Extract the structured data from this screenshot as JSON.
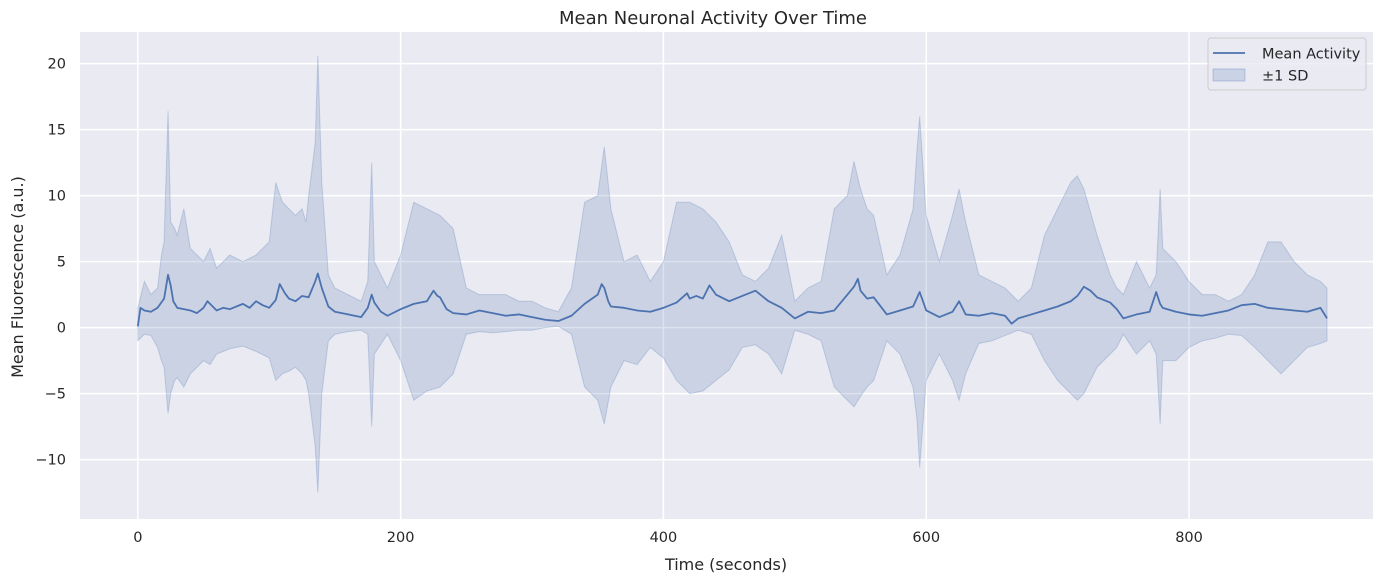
{
  "chart_data": {
    "type": "line",
    "title": "Mean Neuronal Activity Over Time",
    "xlabel": "Time (seconds)",
    "ylabel": "Mean Fluorescence (a.u.)",
    "xlim": [
      -44,
      940
    ],
    "ylim": [
      -14.5,
      22.4
    ],
    "x_ticks": [
      0,
      200,
      400,
      600,
      800
    ],
    "y_ticks": [
      -10,
      -5,
      0,
      5,
      10,
      15,
      20
    ],
    "x_tick_labels": [
      "0",
      "200",
      "400",
      "600",
      "800"
    ],
    "y_tick_labels": [
      "−10",
      "−5",
      "0",
      "5",
      "10",
      "15",
      "20"
    ],
    "grid": true,
    "legend_position": "top-right",
    "colors": {
      "background": "#eaeaf2",
      "grid": "#ffffff",
      "line": "#4c72b0",
      "band": "#4c72b0"
    },
    "series": [
      {
        "name": "Mean Activity",
        "kind": "line",
        "x": [
          0,
          2,
          5,
          10,
          15,
          20,
          23,
          25,
          27,
          30,
          35,
          40,
          45,
          50,
          53,
          55,
          60,
          65,
          70,
          75,
          80,
          85,
          90,
          95,
          100,
          105,
          108,
          112,
          115,
          120,
          125,
          130,
          135,
          137,
          140,
          145,
          150,
          160,
          170,
          175,
          178,
          180,
          185,
          190,
          200,
          210,
          220,
          225,
          228,
          230,
          235,
          240,
          250,
          260,
          270,
          280,
          290,
          300,
          310,
          320,
          330,
          340,
          350,
          353,
          355,
          358,
          360,
          370,
          380,
          390,
          400,
          410,
          418,
          420,
          425,
          430,
          435,
          440,
          450,
          460,
          470,
          480,
          490,
          500,
          510,
          520,
          530,
          540,
          545,
          548,
          550,
          555,
          560,
          570,
          580,
          590,
          595,
          600,
          610,
          620,
          625,
          630,
          640,
          650,
          660,
          665,
          670,
          680,
          690,
          700,
          710,
          715,
          720,
          725,
          730,
          740,
          745,
          750,
          760,
          770,
          775,
          778,
          780,
          790,
          800,
          810,
          820,
          830,
          840,
          850,
          860,
          870,
          880,
          890,
          900,
          905
        ],
        "y": [
          0.1,
          1.5,
          1.3,
          1.2,
          1.5,
          2.2,
          4.0,
          3.2,
          2.0,
          1.5,
          1.4,
          1.3,
          1.1,
          1.5,
          2.0,
          1.8,
          1.3,
          1.5,
          1.4,
          1.6,
          1.8,
          1.5,
          2.0,
          1.7,
          1.5,
          2.1,
          3.3,
          2.6,
          2.2,
          2.0,
          2.4,
          2.3,
          3.5,
          4.1,
          3.0,
          1.6,
          1.2,
          1.0,
          0.8,
          1.5,
          2.5,
          1.9,
          1.2,
          0.9,
          1.4,
          1.8,
          2.0,
          2.8,
          2.4,
          2.3,
          1.4,
          1.1,
          1.0,
          1.3,
          1.1,
          0.9,
          1.0,
          0.8,
          0.6,
          0.5,
          0.9,
          1.8,
          2.5,
          3.3,
          3.0,
          2.0,
          1.6,
          1.5,
          1.3,
          1.2,
          1.5,
          1.9,
          2.6,
          2.2,
          2.4,
          2.2,
          3.2,
          2.5,
          2.0,
          2.4,
          2.8,
          2.0,
          1.5,
          0.7,
          1.2,
          1.1,
          1.3,
          2.5,
          3.1,
          3.7,
          2.8,
          2.2,
          2.3,
          1.0,
          1.3,
          1.6,
          2.7,
          1.3,
          0.8,
          1.2,
          2.0,
          1.0,
          0.9,
          1.1,
          0.9,
          0.3,
          0.7,
          1.0,
          1.3,
          1.6,
          2.0,
          2.4,
          3.1,
          2.8,
          2.3,
          1.9,
          1.4,
          0.7,
          1.0,
          1.2,
          2.7,
          1.8,
          1.5,
          1.2,
          1.0,
          0.9,
          1.1,
          1.3,
          1.7,
          1.8,
          1.5,
          1.4,
          1.3,
          1.2,
          1.5,
          0.7
        ]
      },
      {
        "name": "±1 SD",
        "kind": "band",
        "x": [
          0,
          5,
          10,
          15,
          18,
          20,
          23,
          25,
          28,
          30,
          35,
          40,
          45,
          50,
          55,
          60,
          70,
          80,
          90,
          100,
          105,
          110,
          115,
          120,
          125,
          128,
          130,
          135,
          137,
          140,
          145,
          150,
          160,
          170,
          175,
          178,
          180,
          190,
          200,
          210,
          220,
          230,
          240,
          250,
          260,
          270,
          280,
          290,
          300,
          310,
          320,
          330,
          340,
          350,
          355,
          360,
          370,
          380,
          390,
          400,
          410,
          420,
          430,
          440,
          450,
          460,
          470,
          480,
          490,
          500,
          510,
          520,
          530,
          540,
          545,
          550,
          555,
          560,
          570,
          580,
          590,
          593,
          595,
          600,
          610,
          620,
          625,
          630,
          640,
          650,
          660,
          670,
          680,
          690,
          700,
          710,
          715,
          720,
          730,
          740,
          745,
          750,
          760,
          770,
          775,
          778,
          780,
          790,
          800,
          810,
          820,
          830,
          840,
          850,
          860,
          870,
          880,
          890,
          900,
          905
        ],
        "upper": [
          1.5,
          3.5,
          2.5,
          3.0,
          5.5,
          6.5,
          16.4,
          8.0,
          7.5,
          7.0,
          9.0,
          6.0,
          5.5,
          5.0,
          6.0,
          4.5,
          5.5,
          5.0,
          5.5,
          6.5,
          11.0,
          9.5,
          9.0,
          8.5,
          9.0,
          8.0,
          10.0,
          14.0,
          20.6,
          11.0,
          4.0,
          3.0,
          2.5,
          2.0,
          3.5,
          12.5,
          5.0,
          3.0,
          5.5,
          9.5,
          9.0,
          8.5,
          7.5,
          3.0,
          2.5,
          2.5,
          2.5,
          2.0,
          2.0,
          1.5,
          1.2,
          3.0,
          9.5,
          10.0,
          13.7,
          9.0,
          5.0,
          5.5,
          3.5,
          5.0,
          9.5,
          9.5,
          9.0,
          8.0,
          6.5,
          4.0,
          3.5,
          4.5,
          7.0,
          2.0,
          3.0,
          3.5,
          9.0,
          10.0,
          12.6,
          10.5,
          9.0,
          8.5,
          4.0,
          5.5,
          9.0,
          13.5,
          16.0,
          8.5,
          5.0,
          8.5,
          10.5,
          8.0,
          4.0,
          3.5,
          3.0,
          2.0,
          3.0,
          7.0,
          9.0,
          11.0,
          11.5,
          10.5,
          7.0,
          4.0,
          3.0,
          2.5,
          5.0,
          3.0,
          4.0,
          10.5,
          6.0,
          5.0,
          3.5,
          2.5,
          2.5,
          2.0,
          2.5,
          4.0,
          6.5,
          6.5,
          5.0,
          4.0,
          3.5,
          3.0
        ],
        "lower": [
          -1.0,
          -0.5,
          -0.6,
          -1.5,
          -2.5,
          -3.0,
          -6.5,
          -5.0,
          -4.0,
          -3.8,
          -4.5,
          -3.5,
          -3.0,
          -2.5,
          -2.8,
          -2.0,
          -1.6,
          -1.4,
          -1.8,
          -2.3,
          -4.0,
          -3.5,
          -3.3,
          -3.0,
          -3.5,
          -4.0,
          -5.0,
          -9.0,
          -12.5,
          -5.0,
          -1.0,
          -0.5,
          -0.3,
          -0.2,
          -0.5,
          -7.5,
          -2.0,
          -0.5,
          -2.5,
          -5.5,
          -4.8,
          -4.5,
          -3.5,
          -0.5,
          -0.3,
          -0.4,
          -0.3,
          -0.2,
          -0.2,
          0.0,
          0.1,
          -0.5,
          -4.5,
          -5.5,
          -7.3,
          -4.5,
          -2.5,
          -2.8,
          -1.5,
          -2.3,
          -4.0,
          -5.0,
          -4.8,
          -4.0,
          -3.2,
          -1.5,
          -1.3,
          -2.0,
          -3.5,
          -0.2,
          -0.5,
          -1.0,
          -4.5,
          -5.5,
          -6.0,
          -5.2,
          -4.5,
          -4.0,
          -1.0,
          -2.0,
          -4.5,
          -7.0,
          -10.6,
          -4.0,
          -2.0,
          -4.0,
          -5.5,
          -3.5,
          -1.2,
          -1.0,
          -0.6,
          -0.2,
          -0.5,
          -2.5,
          -4.0,
          -5.0,
          -5.5,
          -5.0,
          -3.0,
          -2.0,
          -1.5,
          -0.5,
          -2.0,
          -1.0,
          -2.0,
          -7.3,
          -2.5,
          -2.5,
          -1.5,
          -1.0,
          -0.8,
          -0.5,
          -0.6,
          -1.5,
          -2.5,
          -3.5,
          -2.5,
          -1.5,
          -1.2,
          -1.0
        ]
      }
    ]
  }
}
